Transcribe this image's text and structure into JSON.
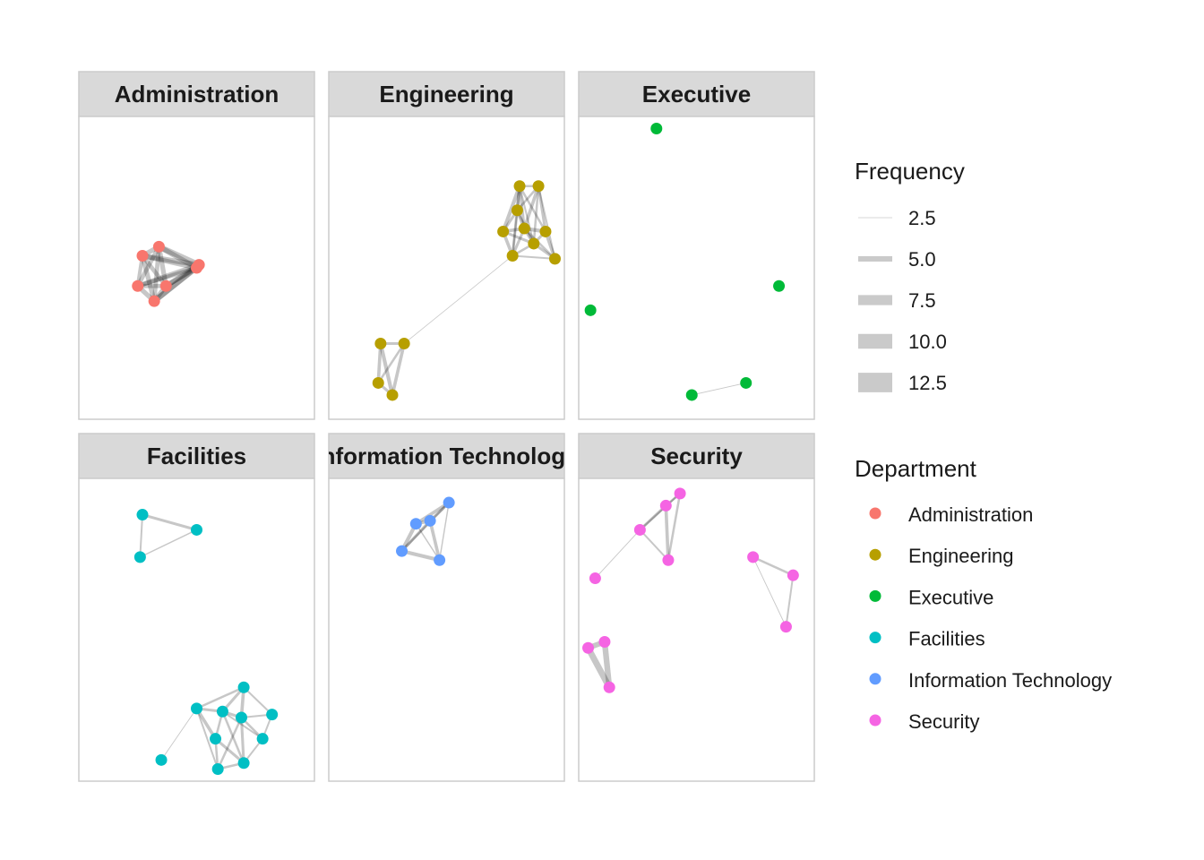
{
  "legend": {
    "frequency": {
      "title": "Frequency",
      "items": [
        {
          "label": "2.5",
          "value": 2.5
        },
        {
          "label": "5.0",
          "value": 5.0
        },
        {
          "label": "7.5",
          "value": 7.5
        },
        {
          "label": "10.0",
          "value": 10.0
        },
        {
          "label": "12.5",
          "value": 12.5
        }
      ]
    },
    "department": {
      "title": "Department",
      "items": [
        {
          "label": "Administration",
          "color": "#F8766D"
        },
        {
          "label": "Engineering",
          "color": "#B79F00"
        },
        {
          "label": "Executive",
          "color": "#00BA38"
        },
        {
          "label": "Facilities",
          "color": "#00BFC4"
        },
        {
          "label": "Information Technology",
          "color": "#619CFF"
        },
        {
          "label": "Security",
          "color": "#F564E3"
        }
      ]
    }
  },
  "panels": [
    {
      "title": "Administration",
      "color": "#F8766D",
      "nodes": [
        [
          0.34,
          0.43
        ],
        [
          0.27,
          0.46
        ],
        [
          0.51,
          0.49
        ],
        [
          0.5,
          0.5
        ],
        [
          0.25,
          0.56
        ],
        [
          0.37,
          0.56
        ],
        [
          0.32,
          0.61
        ]
      ],
      "edges": [
        [
          0,
          1,
          9
        ],
        [
          0,
          2,
          11
        ],
        [
          0,
          3,
          10
        ],
        [
          0,
          4,
          8
        ],
        [
          0,
          5,
          9
        ],
        [
          0,
          6,
          8
        ],
        [
          1,
          2,
          10
        ],
        [
          1,
          3,
          9
        ],
        [
          1,
          4,
          7
        ],
        [
          1,
          5,
          8
        ],
        [
          1,
          6,
          9
        ],
        [
          2,
          3,
          12
        ],
        [
          2,
          4,
          9
        ],
        [
          2,
          5,
          10
        ],
        [
          2,
          6,
          11
        ],
        [
          3,
          4,
          8
        ],
        [
          3,
          5,
          9
        ],
        [
          3,
          6,
          10
        ],
        [
          4,
          5,
          8
        ],
        [
          4,
          6,
          9
        ],
        [
          5,
          6,
          9
        ]
      ]
    },
    {
      "title": "Engineering",
      "color": "#B79F00",
      "nodes": [
        [
          0.81,
          0.23
        ],
        [
          0.89,
          0.23
        ],
        [
          0.8,
          0.31
        ],
        [
          0.74,
          0.38
        ],
        [
          0.83,
          0.37
        ],
        [
          0.92,
          0.38
        ],
        [
          0.87,
          0.42
        ],
        [
          0.78,
          0.46
        ],
        [
          0.96,
          0.47
        ],
        [
          0.22,
          0.75
        ],
        [
          0.32,
          0.75
        ],
        [
          0.21,
          0.88
        ],
        [
          0.27,
          0.92
        ]
      ],
      "edges": [
        [
          0,
          1,
          4
        ],
        [
          0,
          2,
          6
        ],
        [
          0,
          3,
          7
        ],
        [
          0,
          4,
          5
        ],
        [
          0,
          5,
          4
        ],
        [
          0,
          6,
          3
        ],
        [
          0,
          7,
          5
        ],
        [
          1,
          2,
          4
        ],
        [
          1,
          4,
          6
        ],
        [
          1,
          5,
          5
        ],
        [
          1,
          6,
          4
        ],
        [
          1,
          8,
          3
        ],
        [
          2,
          3,
          5
        ],
        [
          2,
          4,
          6
        ],
        [
          2,
          6,
          4
        ],
        [
          2,
          7,
          3
        ],
        [
          3,
          4,
          6
        ],
        [
          3,
          6,
          5
        ],
        [
          3,
          7,
          6
        ],
        [
          4,
          5,
          7
        ],
        [
          4,
          6,
          6
        ],
        [
          4,
          7,
          5
        ],
        [
          4,
          8,
          4
        ],
        [
          5,
          6,
          5
        ],
        [
          5,
          8,
          6
        ],
        [
          6,
          7,
          4
        ],
        [
          6,
          8,
          5
        ],
        [
          7,
          8,
          3
        ],
        [
          7,
          10,
          0.8
        ],
        [
          9,
          10,
          5
        ],
        [
          9,
          11,
          6
        ],
        [
          9,
          12,
          7
        ],
        [
          10,
          11,
          4
        ],
        [
          10,
          12,
          6
        ],
        [
          11,
          12,
          5
        ]
      ]
    },
    {
      "title": "Executive",
      "color": "#00BA38",
      "nodes": [
        [
          0.33,
          0.04
        ],
        [
          0.85,
          0.56
        ],
        [
          0.05,
          0.64
        ],
        [
          0.48,
          0.92
        ],
        [
          0.71,
          0.88
        ]
      ],
      "edges": [
        [
          3,
          4,
          1
        ]
      ]
    },
    {
      "title": "Facilities",
      "color": "#00BFC4",
      "nodes": [
        [
          0.27,
          0.12
        ],
        [
          0.5,
          0.17
        ],
        [
          0.26,
          0.26
        ],
        [
          0.7,
          0.69
        ],
        [
          0.5,
          0.76
        ],
        [
          0.61,
          0.77
        ],
        [
          0.69,
          0.79
        ],
        [
          0.82,
          0.78
        ],
        [
          0.58,
          0.86
        ],
        [
          0.78,
          0.86
        ],
        [
          0.7,
          0.94
        ],
        [
          0.59,
          0.96
        ],
        [
          0.35,
          0.93
        ]
      ],
      "edges": [
        [
          0,
          1,
          5
        ],
        [
          0,
          2,
          3
        ],
        [
          1,
          2,
          2
        ],
        [
          3,
          4,
          4
        ],
        [
          3,
          5,
          5
        ],
        [
          3,
          6,
          6
        ],
        [
          3,
          7,
          3
        ],
        [
          4,
          5,
          5
        ],
        [
          4,
          8,
          6
        ],
        [
          4,
          11,
          3
        ],
        [
          5,
          6,
          5
        ],
        [
          5,
          8,
          4
        ],
        [
          5,
          9,
          3
        ],
        [
          5,
          10,
          4
        ],
        [
          6,
          7,
          3
        ],
        [
          6,
          9,
          4
        ],
        [
          6,
          10,
          5
        ],
        [
          6,
          11,
          4
        ],
        [
          7,
          9,
          3
        ],
        [
          8,
          10,
          5
        ],
        [
          8,
          11,
          4
        ],
        [
          9,
          10,
          3
        ],
        [
          10,
          11,
          4
        ],
        [
          4,
          12,
          1
        ]
      ]
    },
    {
      "title": "Information Technology",
      "color": "#619CFF",
      "nodes": [
        [
          0.51,
          0.08
        ],
        [
          0.37,
          0.15
        ],
        [
          0.43,
          0.14
        ],
        [
          0.31,
          0.24
        ],
        [
          0.47,
          0.27
        ]
      ],
      "edges": [
        [
          0,
          1,
          6
        ],
        [
          0,
          2,
          5
        ],
        [
          0,
          3,
          4
        ],
        [
          1,
          2,
          6
        ],
        [
          1,
          3,
          7
        ],
        [
          2,
          3,
          5
        ],
        [
          2,
          4,
          6
        ],
        [
          3,
          4,
          7
        ],
        [
          0,
          4,
          2
        ],
        [
          1,
          4,
          2
        ]
      ]
    },
    {
      "title": "Security",
      "color": "#F564E3",
      "nodes": [
        [
          0.43,
          0.05
        ],
        [
          0.37,
          0.09
        ],
        [
          0.26,
          0.17
        ],
        [
          0.38,
          0.27
        ],
        [
          0.07,
          0.33
        ],
        [
          0.74,
          0.26
        ],
        [
          0.91,
          0.32
        ],
        [
          0.88,
          0.49
        ],
        [
          0.11,
          0.54
        ],
        [
          0.04,
          0.56
        ],
        [
          0.13,
          0.69
        ]
      ],
      "edges": [
        [
          0,
          1,
          4
        ],
        [
          0,
          2,
          3
        ],
        [
          0,
          3,
          4
        ],
        [
          1,
          2,
          5
        ],
        [
          1,
          3,
          6
        ],
        [
          2,
          3,
          3
        ],
        [
          2,
          4,
          1
        ],
        [
          5,
          6,
          4
        ],
        [
          5,
          7,
          1
        ],
        [
          6,
          7,
          3
        ],
        [
          8,
          9,
          10
        ],
        [
          8,
          10,
          11
        ],
        [
          9,
          10,
          12
        ]
      ]
    }
  ]
}
